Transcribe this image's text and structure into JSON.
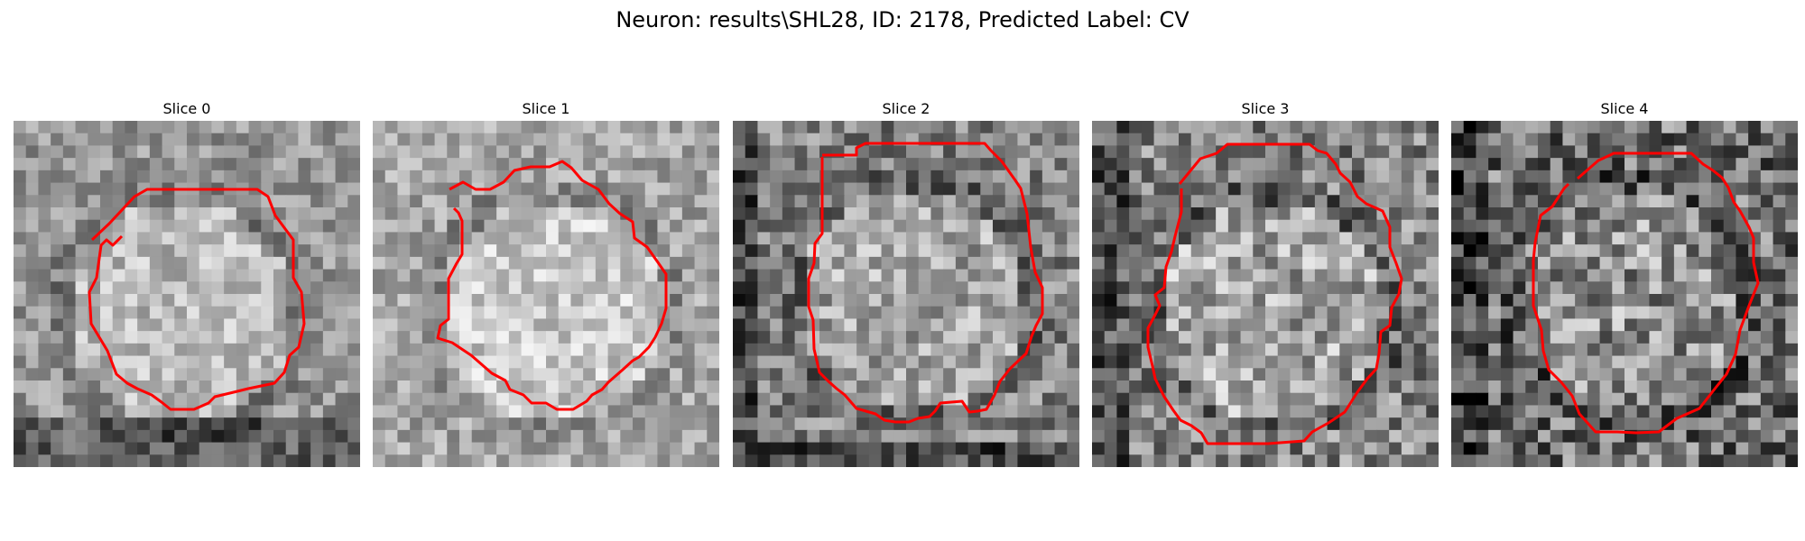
{
  "figure": {
    "title": "Neuron: results\\SHL28, ID: 2178, Predicted Label: CV"
  },
  "panels": [
    {
      "label": "Slice 0"
    },
    {
      "label": "Slice 1"
    },
    {
      "label": "Slice 2"
    },
    {
      "label": "Slice 3"
    },
    {
      "label": "Slice 4"
    }
  ],
  "contour_color": "#ff0000",
  "colormap": "gray"
}
